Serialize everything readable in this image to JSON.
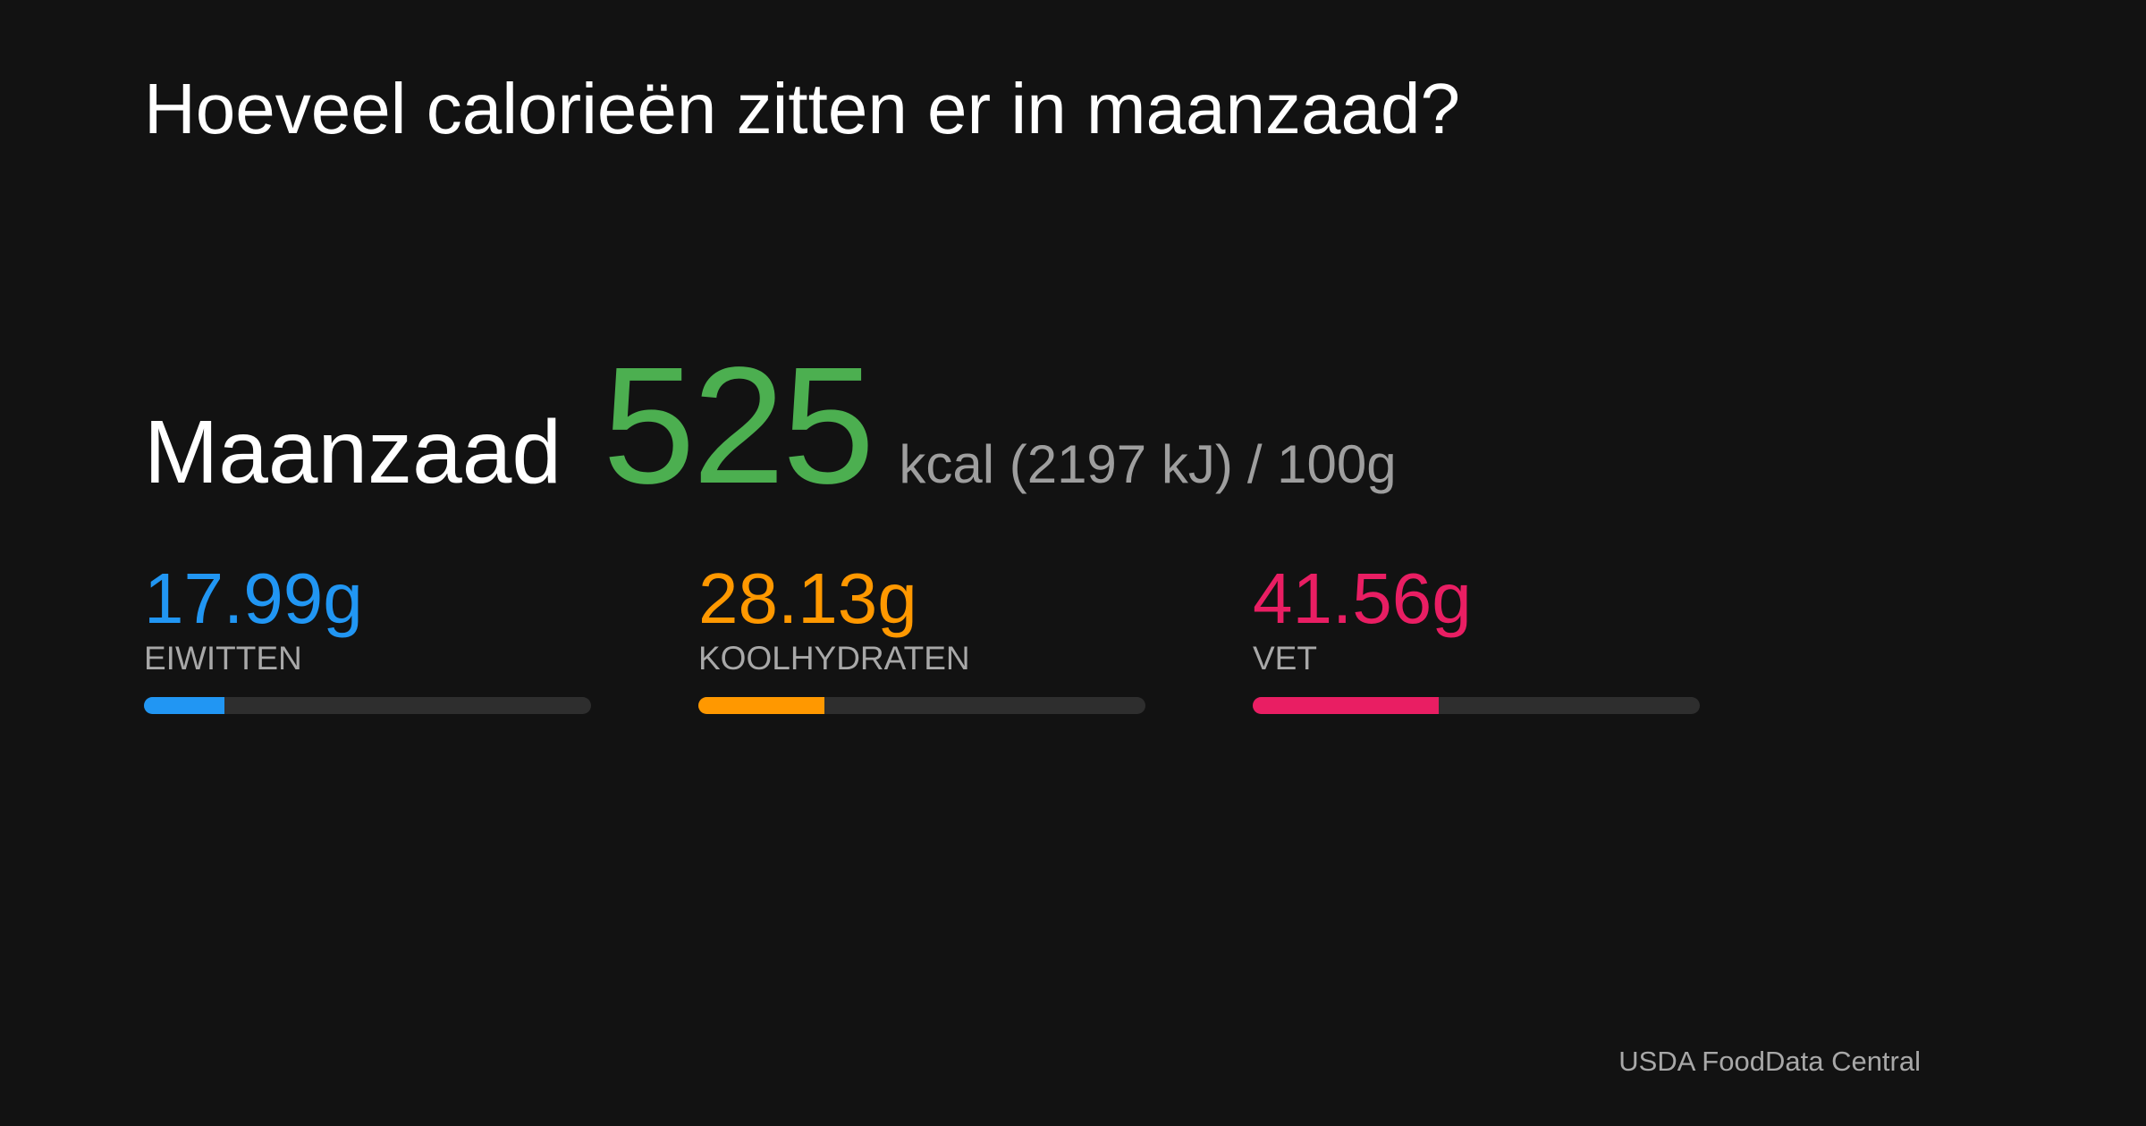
{
  "header": {
    "title": "Hoeveel calorieën zitten er in maanzaad?"
  },
  "food": {
    "name": "Maanzaad",
    "calories": 525,
    "calories_color": "#4caf50",
    "unit": "kcal (2197 kJ)",
    "portion": {
      "value": 100,
      "label": "/ 100g"
    }
  },
  "macros": [
    {
      "name": "EIWITTEN",
      "value": 17.99,
      "label": "17.99g",
      "color": "#2196f3"
    },
    {
      "name": "KOOLHYDRATEN",
      "value": 28.13,
      "label": "28.13g",
      "color": "#ff9800"
    },
    {
      "name": "VET",
      "value": 41.56,
      "label": "41.56g",
      "color": "#e91e63"
    }
  ],
  "footer": {
    "source": "USDA FoodData Central"
  }
}
